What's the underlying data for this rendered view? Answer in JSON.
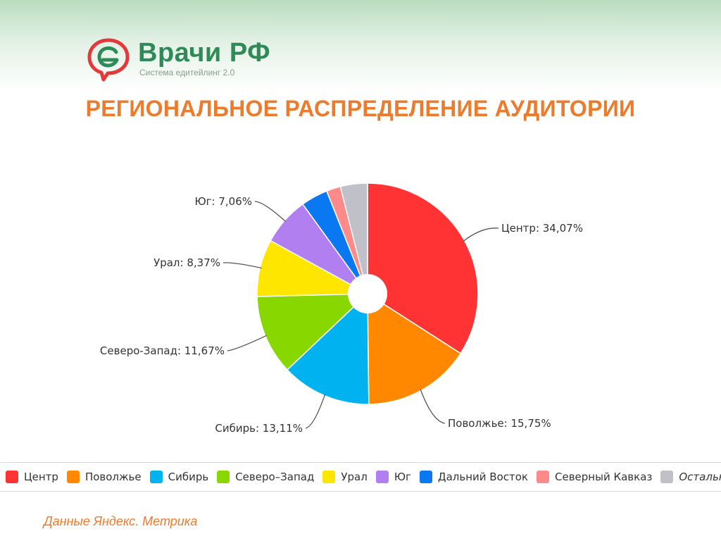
{
  "logo": {
    "name": "Врачи РФ",
    "tagline": "Система едитейлинг 2.0",
    "icon": "speech-bubble-logo-icon",
    "colors": {
      "red": "#e23a3a",
      "green": "#2e8b57"
    }
  },
  "title": "РЕГИОНАЛЬНОЕ РАСПРЕДЕЛЕНИЕ АУДИТОРИИ",
  "source": "Данные Яндекс. Метрика",
  "chart_data": {
    "type": "pie",
    "donut_hole": true,
    "categories": [
      "Центр",
      "Поволжье",
      "Сибирь",
      "Северо-Запад",
      "Урал",
      "Юг",
      "Дальний Восток",
      "Северный Кавказ",
      "Остальные"
    ],
    "values": [
      34.07,
      15.75,
      13.11,
      11.67,
      8.37,
      7.06,
      3.94,
      2.07,
      3.96
    ],
    "colors": [
      "#ff3333",
      "#ff8800",
      "#00b3f0",
      "#88d800",
      "#ffe600",
      "#b27ff0",
      "#0a78f0",
      "#ff8a8a",
      "#c0c0c8"
    ],
    "labels": [
      "Центр: 34,07%",
      "Поволжье: 15,75%",
      "Сибирь: 13,11%",
      "Северо-Запад: 11,67%",
      "Урал: 8,37%",
      "Юг: 7,06%",
      "",
      "",
      ""
    ],
    "legend": {
      "placement": "bottom",
      "items": [
        "Центр",
        "Поволжье",
        "Сибирь",
        "Северо–Запад",
        "Урал",
        "Юг",
        "Дальний Восток",
        "Северный Кавказ",
        "Остальные"
      ]
    }
  }
}
